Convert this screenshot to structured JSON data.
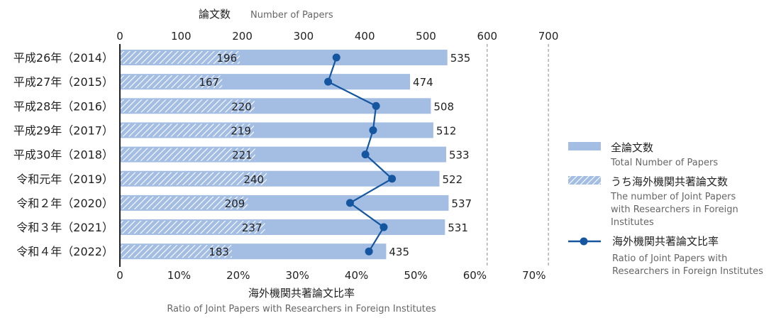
{
  "chart_data": {
    "type": "bar",
    "title": "",
    "top_axis": {
      "title": "論文数",
      "subtitle": "Number of Papers",
      "range": [
        0,
        700
      ],
      "ticks": [
        "0",
        "100",
        "200",
        "300",
        "400",
        "500",
        "600",
        "700"
      ],
      "tick_values": [
        0,
        100,
        200,
        300,
        400,
        500,
        600,
        700
      ]
    },
    "bottom_axis": {
      "title": "海外機関共著論文比率",
      "subtitle": "Ratio of Joint Papers with Researchers in Foreign Institutes",
      "range": [
        0,
        70
      ],
      "ticks": [
        "0",
        "10%",
        "20%",
        "30%",
        "40%",
        "50%",
        "60%",
        "70%"
      ],
      "tick_values": [
        0,
        10,
        20,
        30,
        40,
        50,
        60,
        70
      ]
    },
    "gridlines_dashed_at": [
      600,
      700
    ],
    "categories": [
      "平成26年（2014）",
      "平成27年（2015）",
      "平成28年（2016）",
      "平成29年（2017）",
      "平成30年（2018）",
      "令和元年（2019）",
      "令和２年（2020）",
      "令和３年（2021）",
      "令和４年（2022）"
    ],
    "series": [
      {
        "name": "全論文数",
        "name_en": "Total Number of Papers",
        "kind": "bar",
        "color": "#a3bde3",
        "values": [
          535,
          474,
          508,
          512,
          533,
          522,
          537,
          531,
          435
        ],
        "labels": [
          "535",
          "474",
          "508",
          "512",
          "533",
          "522",
          "537",
          "531",
          "435"
        ]
      },
      {
        "name": "うち海外機関共著論文数",
        "name_en": "The number of Joint Papers with Researchers in Foreign Institutes",
        "kind": "hatched-bar",
        "color": "#a3bde3",
        "values": [
          196,
          167,
          220,
          219,
          221,
          240,
          209,
          237,
          183
        ],
        "labels": [
          "196",
          "167",
          "220",
          "219",
          "221",
          "240",
          "209",
          "237",
          "183"
        ]
      },
      {
        "name": "海外機関共著論文比率",
        "name_en": "Ratio of Joint Papers with Researchers in Foreign Institutes",
        "kind": "line",
        "color": "#1456a0",
        "values": [
          36.6,
          35.2,
          43.3,
          42.8,
          41.5,
          46.0,
          38.9,
          44.6,
          42.1
        ]
      }
    ],
    "legend": {
      "position": "right",
      "items": [
        {
          "label": "全論文数",
          "sublabel": [
            "Total Number of Papers"
          ]
        },
        {
          "label": "うち海外機関共著論文数",
          "sublabel": [
            "The number of Joint Papers",
            "with Researchers in Foreign",
            "Institutes"
          ]
        },
        {
          "label": "海外機関共著論文比率",
          "sublabel": [
            "Ratio of Joint Papers with",
            "Researchers in Foreign Institutes"
          ]
        }
      ]
    }
  }
}
